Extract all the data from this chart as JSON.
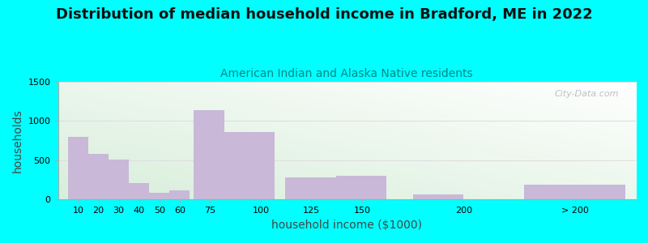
{
  "title": "Distribution of median household income in Bradford, ME in 2022",
  "subtitle": "American Indian and Alaska Native residents",
  "xlabel": "household income ($1000)",
  "ylabel": "households",
  "background_color": "#00FFFF",
  "bar_color": "#C9B8D8",
  "watermark": "City-Data.com",
  "ylim": [
    0,
    1500
  ],
  "yticks": [
    0,
    500,
    1000,
    1500
  ],
  "values": [
    800,
    580,
    510,
    210,
    90,
    120,
    1140,
    860,
    280,
    305,
    65,
    185
  ],
  "bar_lefts": [
    5,
    15,
    25,
    35,
    45,
    55,
    67,
    82,
    112,
    137,
    175,
    230
  ],
  "bar_widths": [
    10,
    10,
    10,
    10,
    10,
    10,
    15,
    25,
    25,
    25,
    25,
    50
  ],
  "xtick_pos": [
    10,
    20,
    30,
    40,
    50,
    60,
    75,
    100,
    125,
    150,
    200,
    255
  ],
  "xtick_labels": [
    "10",
    "20",
    "30",
    "40",
    "50",
    "60",
    "75",
    "100",
    "125",
    "150",
    "200",
    "> 200"
  ],
  "title_fontsize": 13,
  "subtitle_fontsize": 10,
  "axis_label_fontsize": 10
}
